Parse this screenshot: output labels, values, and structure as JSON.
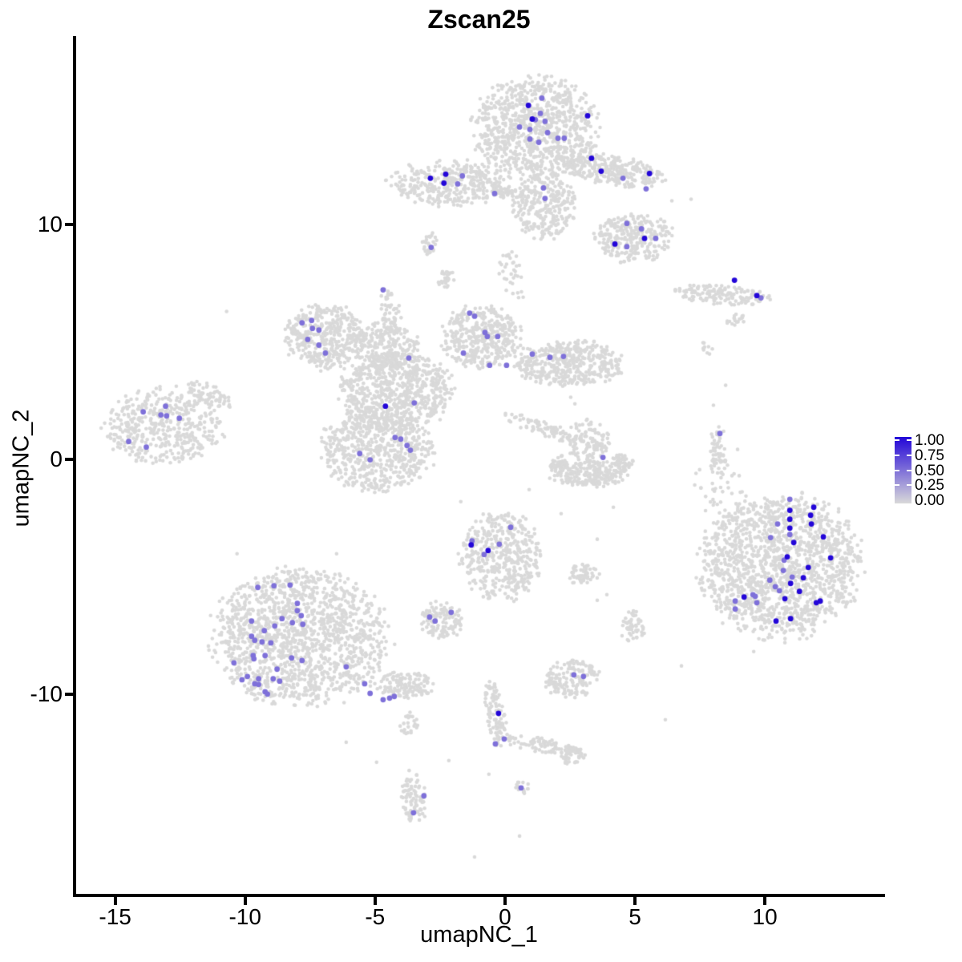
{
  "title": "Zscan25",
  "chart_data": {
    "type": "scatter",
    "title": "Zscan25",
    "xlabel": "umapNC_1",
    "ylabel": "umapNC_2",
    "xlim": [
      -16.5,
      14.5
    ],
    "ylim": [
      -18.5,
      18.0
    ],
    "x_ticks": [
      "-15",
      "-10",
      "-5",
      "0",
      "5",
      "10"
    ],
    "x_tick_values": [
      -15,
      -10,
      -5,
      0,
      5,
      10
    ],
    "y_ticks": [
      "10",
      "0",
      "-10"
    ],
    "y_tick_values": [
      10,
      0,
      -10
    ],
    "grid": false,
    "legend_position": "right",
    "color_scale": {
      "low": "#D9D9D9",
      "high": "#2306D8"
    },
    "point_radius_background": 2.3,
    "point_radius_expressing": 3.4,
    "seed": 11,
    "background_clusters": [
      [
        1.17,
        14.06,
        2.35,
        2.15,
        0,
        900
      ],
      [
        1.54,
        10.72,
        1.2,
        1.35,
        0,
        280
      ],
      [
        -2.16,
        11.74,
        2.2,
        0.95,
        0,
        340
      ],
      [
        -2.9,
        9.18,
        0.3,
        0.45,
        0,
        25
      ],
      [
        0.15,
        11.33,
        0.6,
        0.25,
        0,
        40
      ],
      [
        4.07,
        12.29,
        2.1,
        0.6,
        -10,
        280
      ],
      [
        4.97,
        9.42,
        1.5,
        1.05,
        0,
        270
      ],
      [
        0.31,
        7.92,
        0.5,
        1.1,
        15,
        35
      ],
      [
        8.33,
        7.0,
        1.9,
        0.42,
        -5,
        150
      ],
      [
        8.89,
        5.94,
        0.5,
        0.25,
        0,
        18
      ],
      [
        -6.94,
        5.19,
        1.55,
        1.35,
        0,
        400
      ],
      [
        -4.63,
        4.78,
        1.3,
        1.0,
        0,
        250
      ],
      [
        -4.17,
        2.9,
        2.1,
        1.65,
        0,
        680
      ],
      [
        -0.93,
        5.19,
        1.5,
        1.28,
        0,
        400
      ],
      [
        2.47,
        4.1,
        2.1,
        0.95,
        0,
        430
      ],
      [
        -4.94,
        0.41,
        2.1,
        1.7,
        0,
        620
      ],
      [
        1.85,
        1.16,
        2.2,
        0.3,
        -20,
        110
      ],
      [
        -4.41,
        6.21,
        0.35,
        1.05,
        8,
        55
      ],
      [
        -2.28,
        7.68,
        0.3,
        0.4,
        0,
        28
      ],
      [
        -13.12,
        1.37,
        2.25,
        1.6,
        0,
        450
      ],
      [
        -11.36,
        2.73,
        0.95,
        0.4,
        -28,
        60
      ],
      [
        -7.87,
        -7.61,
        3.3,
        2.9,
        0,
        1400
      ],
      [
        -3.86,
        -9.66,
        1.05,
        0.6,
        0,
        140
      ],
      [
        -3.7,
        -11.26,
        0.33,
        0.5,
        0,
        22
      ],
      [
        -0.15,
        -4.1,
        1.5,
        1.85,
        0,
        440
      ],
      [
        -2.41,
        -6.86,
        0.85,
        0.75,
        0,
        120
      ],
      [
        2.99,
        -4.91,
        0.62,
        0.45,
        0,
        55
      ],
      [
        2.53,
        -9.32,
        1.05,
        0.8,
        0,
        150
      ],
      [
        -0.37,
        -10.85,
        0.38,
        1.35,
        8,
        100
      ],
      [
        1.39,
        -12.18,
        1.4,
        0.32,
        -12,
        90
      ],
      [
        2.53,
        -12.59,
        0.5,
        0.38,
        0,
        45
      ],
      [
        -3.49,
        -14.44,
        0.5,
        1.15,
        0,
        85
      ],
      [
        0.65,
        -13.96,
        0.27,
        0.27,
        0,
        14
      ],
      [
        10.56,
        -4.57,
        3.05,
        2.95,
        0,
        1500
      ],
      [
        8.24,
        -1.54,
        1.0,
        1.5,
        0,
        40
      ],
      [
        8.18,
        0.24,
        0.32,
        1.15,
        0,
        55
      ],
      [
        7.84,
        4.78,
        0.3,
        0.3,
        0,
        8
      ],
      [
        3.18,
        0.75,
        0.8,
        0.95,
        0,
        90
      ],
      [
        3.24,
        -0.61,
        1.5,
        0.55,
        0,
        230
      ],
      [
        2.07,
        -0.17,
        0.35,
        0.35,
        0,
        40
      ],
      [
        4.48,
        -0.17,
        0.42,
        0.38,
        0,
        50
      ],
      [
        4.91,
        -7.13,
        0.45,
        0.65,
        0,
        55
      ]
    ],
    "noise_points": [
      [
        -10.71,
        6.28
      ],
      [
        7.62,
        4.95
      ],
      [
        3.55,
        -6.01
      ],
      [
        3.92,
        -5.77
      ],
      [
        -3.4,
        -11.43
      ],
      [
        -2.16,
        -12.83
      ],
      [
        -0.62,
        -13.41
      ],
      [
        6.17,
        -11.09
      ],
      [
        6.79,
        -8.8
      ],
      [
        9.57,
        -8.19
      ],
      [
        8.49,
        3.14
      ],
      [
        8.02,
        2.29
      ],
      [
        7.35,
        -0.61
      ],
      [
        8.95,
        0.41
      ],
      [
        -10.31,
        -4.03
      ],
      [
        -6.48,
        -4.03
      ],
      [
        -1.7,
        -1.81
      ],
      [
        0.93,
        -1.3
      ],
      [
        2.16,
        -2.32
      ],
      [
        3.55,
        -3.41
      ],
      [
        -1.17,
        -16.93
      ],
      [
        0.56,
        -16.04
      ],
      [
        -4.94,
        -12.9
      ],
      [
        -6.11,
        -12.05
      ],
      [
        6.42,
        10.99
      ],
      [
        7.16,
        11.06
      ],
      [
        2.53,
        2.63
      ],
      [
        2.69,
        2.35
      ],
      [
        4.17,
        -2.05
      ]
    ],
    "expressing_cells": [
      [
        0.9,
        15.05,
        1
      ],
      [
        1.42,
        15.36,
        0.5
      ],
      [
        1.05,
        14.47,
        1
      ],
      [
        1.36,
        14.71,
        0.5
      ],
      [
        1.17,
        14.44,
        0.5
      ],
      [
        0.96,
        14.03,
        0.5
      ],
      [
        1.54,
        14.37,
        0.5
      ],
      [
        3.18,
        14.61,
        1
      ],
      [
        0.56,
        14.13,
        0.5
      ],
      [
        0.96,
        13.62,
        0.5
      ],
      [
        1.64,
        13.89,
        0.5
      ],
      [
        2.04,
        13.65,
        0.5
      ],
      [
        2.28,
        13.65,
        0.5
      ],
      [
        1.3,
        13.48,
        0.5
      ],
      [
        3.33,
        12.8,
        1
      ],
      [
        3.7,
        12.25,
        1
      ],
      [
        4.54,
        11.95,
        0.5
      ],
      [
        5.56,
        12.15,
        1
      ],
      [
        5.43,
        11.5,
        0.5
      ],
      [
        -2.87,
        11.95,
        1
      ],
      [
        -2.28,
        12.12,
        1
      ],
      [
        -2.35,
        11.74,
        1
      ],
      [
        -1.64,
        12.05,
        0.5
      ],
      [
        -1.82,
        11.71,
        0.5
      ],
      [
        -0.4,
        11.3,
        0.5
      ],
      [
        1.48,
        11.54,
        0.5
      ],
      [
        1.54,
        11.09,
        0.5
      ],
      [
        -2.84,
        9.01,
        0.5
      ],
      [
        4.69,
        10.03,
        0.5
      ],
      [
        5.25,
        9.8,
        0.5
      ],
      [
        5.37,
        9.39,
        1
      ],
      [
        5.8,
        9.39,
        0.5
      ],
      [
        4.23,
        9.15,
        1
      ],
      [
        4.69,
        9.04,
        0.5
      ],
      [
        8.83,
        7.61,
        1
      ],
      [
        9.69,
        6.96,
        1
      ],
      [
        9.85,
        6.86,
        0.5
      ],
      [
        -7.81,
        5.8,
        0.5
      ],
      [
        -7.44,
        5.9,
        0.5
      ],
      [
        -7.41,
        5.56,
        0.5
      ],
      [
        -7.16,
        5.49,
        0.5
      ],
      [
        -7.59,
        5.09,
        0.5
      ],
      [
        -7.16,
        4.85,
        0.5
      ],
      [
        -6.91,
        4.51,
        0.5
      ],
      [
        -4.69,
        7.2,
        0.5
      ],
      [
        -3.7,
        4.3,
        0.5
      ],
      [
        -1.36,
        6.21,
        0.5
      ],
      [
        -1.17,
        6.08,
        0.5
      ],
      [
        -0.77,
        5.39,
        0.5
      ],
      [
        -0.68,
        5.22,
        0.5
      ],
      [
        -0.28,
        5.22,
        0.5
      ],
      [
        -1.6,
        4.51,
        0.5
      ],
      [
        -0.59,
        3.99,
        0.5
      ],
      [
        0.06,
        3.99,
        0.5
      ],
      [
        1.05,
        4.47,
        0.5
      ],
      [
        1.73,
        4.33,
        0.5
      ],
      [
        2.25,
        4.37,
        0.5
      ],
      [
        -3.49,
        2.39,
        0.5
      ],
      [
        -4.6,
        2.25,
        1
      ],
      [
        -4.23,
        0.92,
        0.5
      ],
      [
        -4.01,
        0.85,
        0.5
      ],
      [
        -3.77,
        0.58,
        0.5
      ],
      [
        -3.64,
        0.38,
        0.5
      ],
      [
        -5.59,
        0.24,
        0.5
      ],
      [
        -5.19,
        -0.03,
        0.5
      ],
      [
        -13.06,
        2.25,
        0.5
      ],
      [
        -13.92,
        2.01,
        0.5
      ],
      [
        -13.24,
        1.88,
        0.5
      ],
      [
        -13.02,
        1.84,
        0.5
      ],
      [
        -12.53,
        1.74,
        0.5
      ],
      [
        -14.48,
        0.75,
        0.5
      ],
      [
        -13.8,
        0.51,
        0.5
      ],
      [
        -9.51,
        -5.46,
        0.5
      ],
      [
        -8.89,
        -5.39,
        0.5
      ],
      [
        -8.27,
        -5.36,
        0.5
      ],
      [
        -7.99,
        -6.14,
        0.5
      ],
      [
        -7.99,
        -6.45,
        0.5
      ],
      [
        -7.84,
        -6.66,
        0.5
      ],
      [
        -8.58,
        -6.79,
        0.5
      ],
      [
        -8.18,
        -6.96,
        0.5
      ],
      [
        -7.78,
        -7.03,
        0.5
      ],
      [
        -8.86,
        -7.1,
        0.5
      ],
      [
        -9.26,
        -7.3,
        0.5
      ],
      [
        -9.75,
        -6.89,
        0.5
      ],
      [
        -9.75,
        -7.54,
        0.5
      ],
      [
        -9.63,
        -7.71,
        0.5
      ],
      [
        -9.35,
        -7.78,
        0.5
      ],
      [
        -9.01,
        -7.82,
        0.5
      ],
      [
        -9.69,
        -8.36,
        0.5
      ],
      [
        -9.66,
        -8.5,
        0.5
      ],
      [
        -9.23,
        -8.36,
        0.5
      ],
      [
        -10.43,
        -8.67,
        0.5
      ],
      [
        -8.21,
        -8.46,
        0.5
      ],
      [
        -7.81,
        -8.57,
        0.5
      ],
      [
        -8.77,
        -8.94,
        0.5
      ],
      [
        -10.12,
        -9.39,
        0.5
      ],
      [
        -9.91,
        -9.25,
        0.5
      ],
      [
        -9.48,
        -9.35,
        0.5
      ],
      [
        -9.63,
        -9.56,
        0.5
      ],
      [
        -9.48,
        -9.59,
        0.5
      ],
      [
        -8.92,
        -9.35,
        0.5
      ],
      [
        -8.67,
        -9.45,
        0.5
      ],
      [
        -9.23,
        -9.9,
        0.5
      ],
      [
        -9.14,
        -10.0,
        0.5
      ],
      [
        -6.11,
        -8.84,
        0.5
      ],
      [
        -5.4,
        -9.56,
        0.5
      ],
      [
        -5.19,
        -9.97,
        0.5
      ],
      [
        -4.69,
        -10.24,
        0.5
      ],
      [
        -4.44,
        -10.17,
        0.5
      ],
      [
        -4.26,
        -10.1,
        0.5
      ],
      [
        -2.9,
        -6.72,
        0.5
      ],
      [
        -2.69,
        -6.89,
        0.5
      ],
      [
        -2.07,
        -6.52,
        0.5
      ],
      [
        -1.3,
        -3.65,
        1
      ],
      [
        -1.27,
        -3.48,
        0.5
      ],
      [
        -0.65,
        -3.89,
        1
      ],
      [
        -0.8,
        -4.06,
        0.5
      ],
      [
        -0.22,
        -3.62,
        0.5
      ],
      [
        0.22,
        -2.9,
        0.5
      ],
      [
        2.65,
        -9.18,
        0.5
      ],
      [
        3.02,
        -9.25,
        0.5
      ],
      [
        -0.25,
        -10.82,
        1
      ],
      [
        -0.37,
        -12.12,
        0.5
      ],
      [
        -0.03,
        -11.91,
        0.5
      ],
      [
        -3.12,
        -14.33,
        0.5
      ],
      [
        -3.52,
        -15.05,
        0.5
      ],
      [
        0.62,
        -13.99,
        0.5
      ],
      [
        8.27,
        1.09,
        0.5
      ],
      [
        3.77,
        0.07,
        0.5
      ],
      [
        10.96,
        -1.71,
        0.5
      ],
      [
        11.88,
        -2.05,
        1
      ],
      [
        10.96,
        -2.18,
        1
      ],
      [
        11.76,
        -2.39,
        1
      ],
      [
        10.49,
        -2.76,
        0.5
      ],
      [
        10.96,
        -2.56,
        1
      ],
      [
        11.79,
        -2.76,
        1
      ],
      [
        10.22,
        -3.34,
        0.5
      ],
      [
        10.96,
        -2.94,
        1
      ],
      [
        10.96,
        -3.21,
        0.5
      ],
      [
        11.11,
        -3.55,
        1
      ],
      [
        12.25,
        -3.31,
        1
      ],
      [
        12.53,
        -4.2,
        1
      ],
      [
        10.86,
        -4.16,
        1
      ],
      [
        10.74,
        -4.3,
        0.5
      ],
      [
        10.71,
        -4.74,
        0.5
      ],
      [
        11.67,
        -4.61,
        1
      ],
      [
        11.05,
        -5.02,
        0.5
      ],
      [
        11.48,
        -5.05,
        1
      ],
      [
        10.19,
        -5.15,
        0.5
      ],
      [
        10.99,
        -5.29,
        1
      ],
      [
        10.4,
        -5.43,
        0.5
      ],
      [
        11.33,
        -5.63,
        1
      ],
      [
        10.56,
        -5.6,
        0.5
      ],
      [
        10.77,
        -5.94,
        1
      ],
      [
        11.98,
        -6.11,
        1
      ],
      [
        12.13,
        -6.04,
        1
      ],
      [
        9.54,
        -5.77,
        0.5
      ],
      [
        9.2,
        -5.87,
        1
      ],
      [
        9.63,
        -5.84,
        0.5
      ],
      [
        9.69,
        -6.11,
        0.5
      ],
      [
        8.86,
        -6.04,
        0.5
      ],
      [
        8.86,
        -6.38,
        0.5
      ],
      [
        10.43,
        -6.89,
        1
      ],
      [
        10.99,
        -6.79,
        1
      ]
    ]
  },
  "legend": {
    "labels": [
      "1.00",
      "0.75",
      "0.50",
      "0.25",
      "0.00"
    ],
    "values": [
      1,
      0.75,
      0.5,
      0.25,
      0
    ],
    "tick_values": [
      1,
      0.75,
      0.5,
      0.25
    ]
  }
}
